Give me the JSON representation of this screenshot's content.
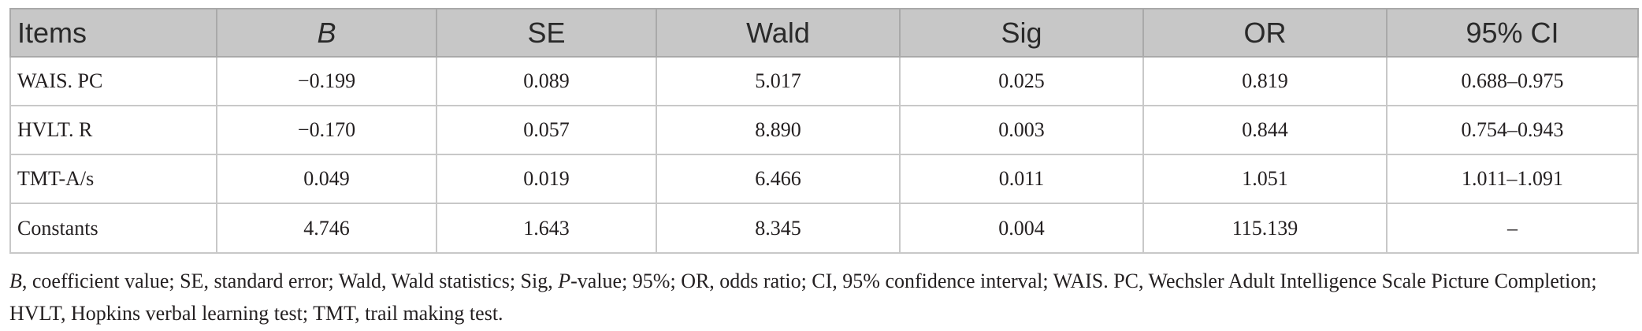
{
  "table": {
    "headers": [
      "Items",
      "B",
      "SE",
      "Wald",
      "Sig",
      "OR",
      "95% CI"
    ],
    "rows": [
      [
        "WAIS. PC",
        "−0.199",
        "0.089",
        "5.017",
        "0.025",
        "0.819",
        "0.688–0.975"
      ],
      [
        "HVLT. R",
        "−0.170",
        "0.057",
        "8.890",
        "0.003",
        "0.844",
        "0.754–0.943"
      ],
      [
        "TMT-A/s",
        "0.049",
        "0.019",
        "6.466",
        "0.011",
        "1.051",
        "1.011–1.091"
      ],
      [
        "Constants",
        "4.746",
        "1.643",
        "8.345",
        "0.004",
        "115.139",
        "–"
      ]
    ]
  },
  "footnote": {
    "b_italic": "B",
    "part1": ", coefficient value; SE, standard error; Wald, Wald statistics; Sig, ",
    "p_italic": "P",
    "part2": "-value; 95%; OR, odds ratio; CI, 95% confidence interval; WAIS. PC, Wechsler Adult Intelligence Scale Picture Completion; HVLT, Hopkins verbal learning test; TMT, trail making test."
  }
}
